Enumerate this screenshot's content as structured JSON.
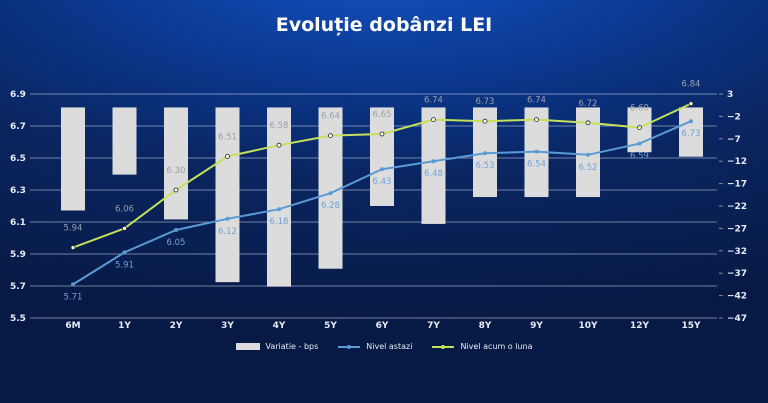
{
  "chart_data": {
    "type": "bar+line",
    "title": "Evoluție dobânzi LEI",
    "categories": [
      "6M",
      "1Y",
      "2Y",
      "3Y",
      "4Y",
      "5Y",
      "6Y",
      "7Y",
      "8Y",
      "9Y",
      "10Y",
      "12Y",
      "15Y"
    ],
    "series": [
      {
        "name": "Variatie - bps",
        "type": "bar",
        "axis": "right",
        "color": "#dcdcdc",
        "values": [
          -23,
          -15,
          -25,
          -39,
          -40,
          -36,
          -22,
          -26,
          -20,
          -20,
          -20,
          -10,
          -11
        ]
      },
      {
        "name": "Nivel astazi",
        "type": "line",
        "axis": "left",
        "color": "#5b9bd5",
        "values": [
          5.71,
          5.91,
          6.05,
          6.12,
          6.18,
          6.28,
          6.43,
          6.48,
          6.53,
          6.54,
          6.52,
          6.59,
          6.73
        ],
        "labels": [
          "5.71",
          "5.91",
          "6.05",
          "6.12",
          "6.18",
          "6.28",
          "6.43",
          "6.48",
          "6.53",
          "6.54",
          "6.52",
          "6.59",
          "6.73"
        ]
      },
      {
        "name": "Nivel acum o luna",
        "type": "line",
        "axis": "left",
        "color": "#c5e05a",
        "values": [
          5.94,
          6.06,
          6.3,
          6.51,
          6.58,
          6.64,
          6.65,
          6.74,
          6.73,
          6.74,
          6.72,
          6.69,
          6.84
        ],
        "labels": [
          "5.94",
          "6.06",
          "6.30",
          "6.51",
          "6.58",
          "6.64",
          "6.65",
          "6.74",
          "6.73",
          "6.74",
          "6.72",
          "6.69",
          "6.84"
        ]
      }
    ],
    "left_axis": {
      "range": [
        5.5,
        6.9
      ],
      "ticks": [
        "5.5",
        "5.7",
        "5.9",
        "6.1",
        "6.3",
        "6.5",
        "6.7",
        "6.9"
      ]
    },
    "right_axis": {
      "range": [
        -47,
        3
      ],
      "ticks": [
        "3",
        "−2",
        "−7",
        "−12",
        "−17",
        "−22",
        "−27",
        "−32",
        "−37",
        "−42",
        "−47"
      ]
    },
    "grid": true,
    "legend_position": "bottom"
  }
}
